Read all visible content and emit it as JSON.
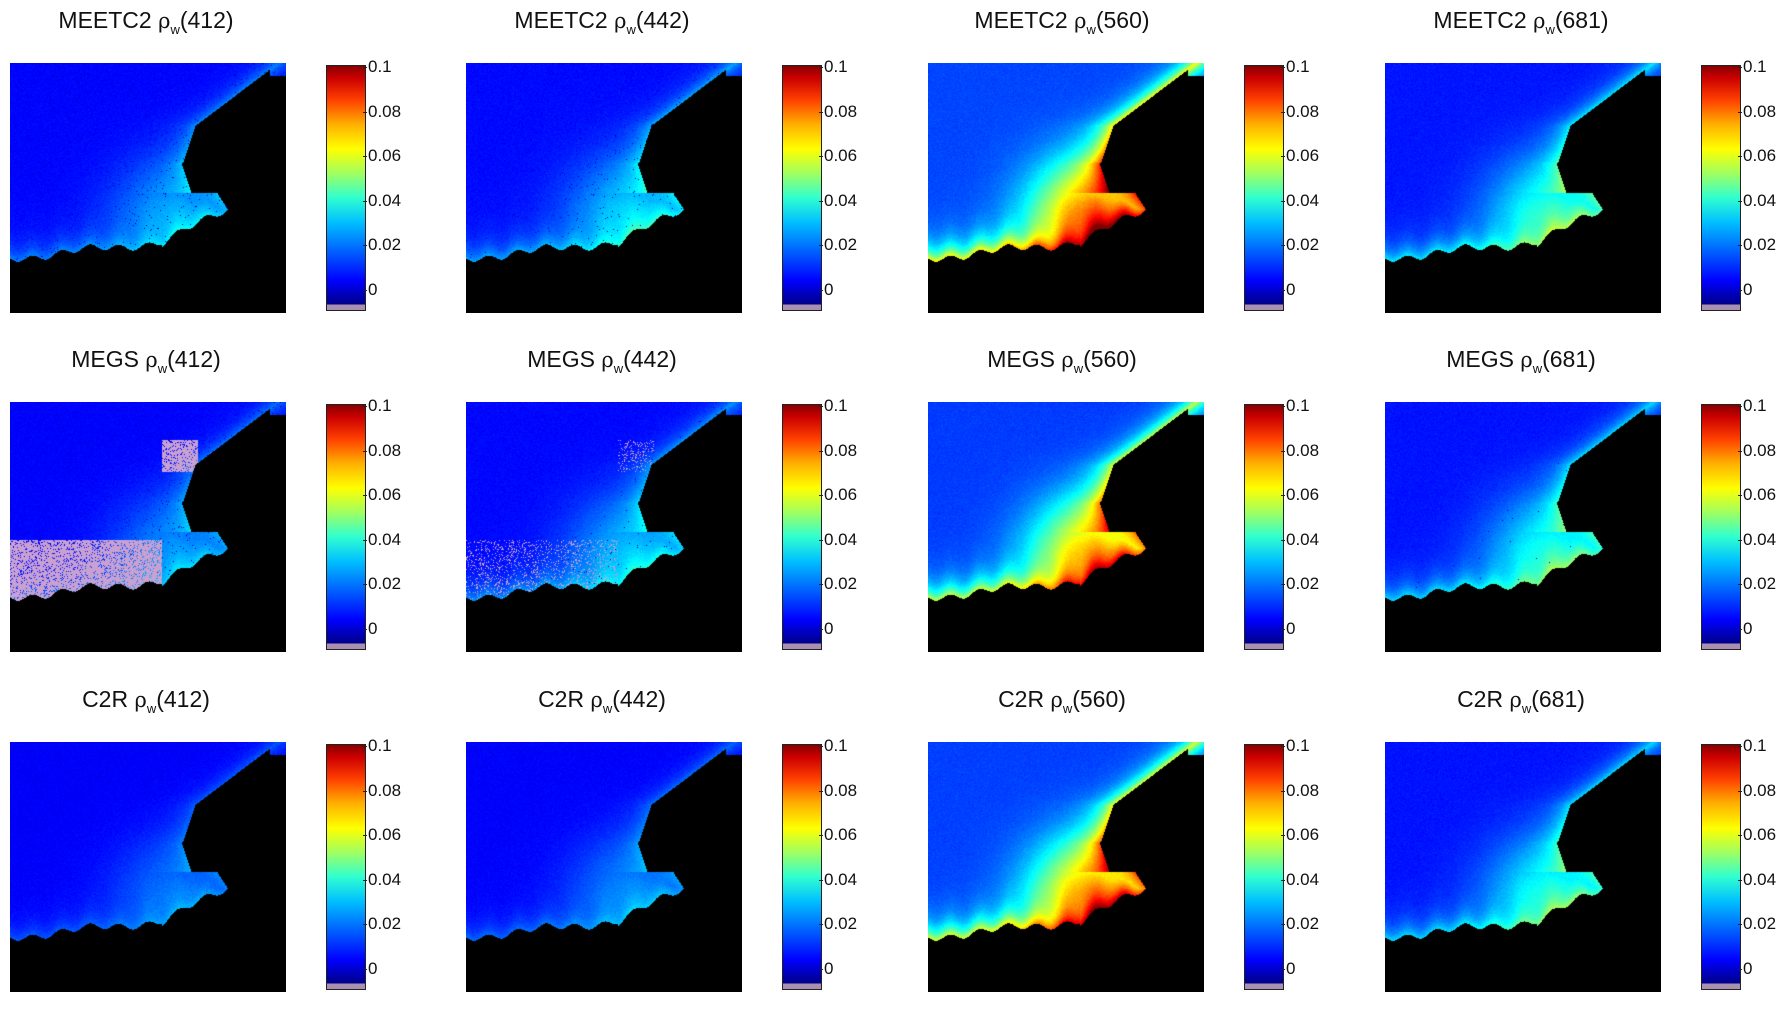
{
  "colorbar": {
    "ticks": [
      "0.1",
      "0.08",
      "0.06",
      "0.04",
      "0.02",
      "0"
    ],
    "colors": [
      "#880000",
      "#ff4000",
      "#ffff00",
      "#30ffd0",
      "#0060ff",
      "#0000ff",
      "#a990b0"
    ]
  },
  "symbol": {
    "rho": "ρ",
    "sub": "w"
  },
  "panels": [
    {
      "method": "MEETC2",
      "band": "(412)",
      "level": 0.18,
      "speckle": 0.55,
      "pink": 0.0
    },
    {
      "method": "MEETC2",
      "band": "(442)",
      "level": 0.22,
      "speckle": 0.45,
      "pink": 0.0
    },
    {
      "method": "MEETC2",
      "band": "(560)",
      "level": 0.62,
      "speckle": 0.0,
      "pink": 0.0
    },
    {
      "method": "MEETC2",
      "band": "(681)",
      "level": 0.3,
      "speckle": 0.0,
      "pink": 0.0
    },
    {
      "method": "MEGS",
      "band": "(412)",
      "level": 0.16,
      "speckle": 0.6,
      "pink": 0.85
    },
    {
      "method": "MEGS",
      "band": "(442)",
      "level": 0.2,
      "speckle": 0.3,
      "pink": 0.15
    },
    {
      "method": "MEGS",
      "band": "(560)",
      "level": 0.55,
      "speckle": 0.0,
      "pink": 0.0
    },
    {
      "method": "MEGS",
      "band": "(681)",
      "level": 0.28,
      "speckle": 0.05,
      "pink": 0.0
    },
    {
      "method": "C2R",
      "band": "(412)",
      "level": 0.13,
      "speckle": 0.0,
      "pink": 0.0
    },
    {
      "method": "C2R",
      "band": "(442)",
      "level": 0.15,
      "speckle": 0.0,
      "pink": 0.0
    },
    {
      "method": "C2R",
      "band": "(560)",
      "level": 0.58,
      "speckle": 0.0,
      "pink": 0.0
    },
    {
      "method": "C2R",
      "band": "(681)",
      "level": 0.28,
      "speckle": 0.0,
      "pink": 0.0
    }
  ]
}
